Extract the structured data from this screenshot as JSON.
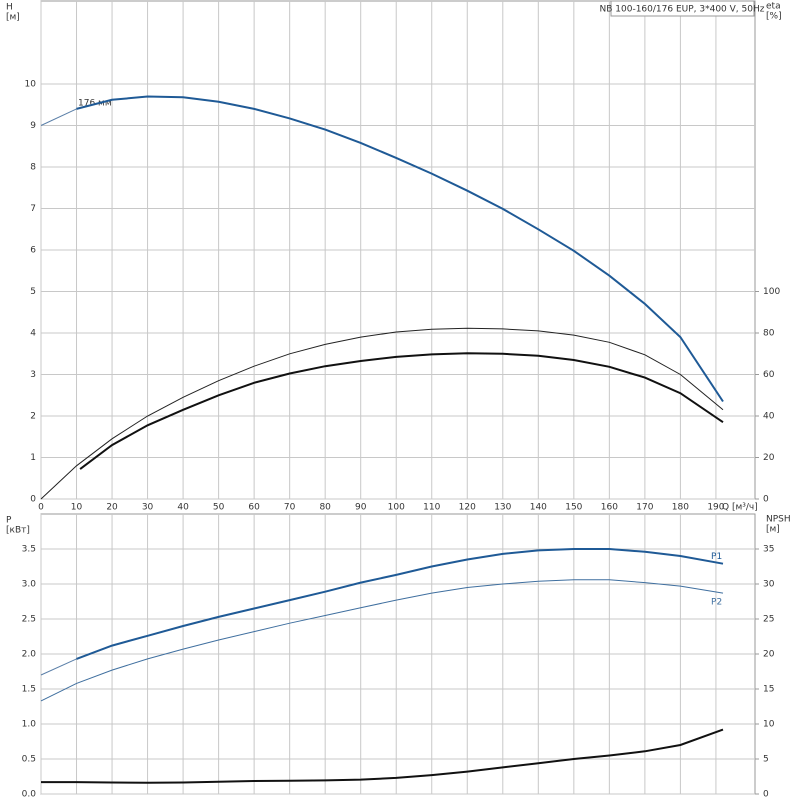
{
  "chart_data": [
    {
      "type": "line",
      "title": "NB 100-160/176 EUP, 3*400 V, 50Hz",
      "annotation": "176 мм",
      "x_label": "Q [м³/ч]",
      "y_label": "H",
      "y_unit": "[м]",
      "y2_label": "eta",
      "y2_unit": "[%]",
      "xlim": [
        0,
        201
      ],
      "xticks": [
        0,
        10,
        20,
        30,
        40,
        50,
        60,
        70,
        80,
        90,
        100,
        110,
        120,
        130,
        140,
        150,
        160,
        170,
        180,
        190
      ],
      "xtick_labels": true,
      "ylim": [
        0,
        12
      ],
      "yticks": [
        0,
        1,
        2,
        3,
        4,
        5,
        6,
        7,
        8,
        9,
        10
      ],
      "y2lim": [
        0,
        240
      ],
      "y2ticks": [
        0,
        20,
        40,
        60,
        80,
        100
      ],
      "grid": true,
      "series": [
        {
          "color": "#5a7fa8",
          "width": 1,
          "x": [
            0,
            10
          ],
          "values": [
            9.0,
            9.4
          ]
        },
        {
          "color": "#1f5a96",
          "width": 2,
          "x": [
            10,
            20,
            30,
            40,
            50,
            60,
            70,
            80,
            90,
            100,
            110,
            120,
            130,
            140,
            150,
            160,
            170,
            180,
            192
          ],
          "values": [
            9.4,
            9.62,
            9.7,
            9.68,
            9.57,
            9.4,
            9.17,
            8.9,
            8.58,
            8.22,
            7.84,
            7.43,
            6.99,
            6.5,
            5.98,
            5.38,
            4.7,
            3.9,
            2.35
          ]
        },
        {
          "color": "#222222",
          "width": 1,
          "axis": "y2",
          "x": [
            0,
            10,
            20,
            30,
            40,
            50,
            60,
            70,
            80,
            90,
            100,
            110,
            120,
            130,
            140,
            150,
            160,
            170,
            180,
            192
          ],
          "values": [
            0,
            16,
            29,
            40,
            49,
            57,
            64,
            70,
            74.5,
            78,
            80.5,
            81.8,
            82.3,
            82,
            81,
            79,
            75.5,
            69.5,
            60,
            43
          ]
        },
        {
          "color": "#111111",
          "width": 2,
          "axis": "y2",
          "x": [
            11,
            20,
            30,
            40,
            50,
            60,
            70,
            80,
            90,
            100,
            110,
            120,
            130,
            140,
            150,
            160,
            170,
            180,
            192
          ],
          "values": [
            14.4,
            26,
            35.5,
            43,
            50,
            56,
            60.5,
            64,
            66.5,
            68.5,
            69.7,
            70.2,
            70,
            69,
            67,
            63.7,
            58.5,
            51,
            37
          ]
        }
      ]
    },
    {
      "type": "line",
      "y_label": "P",
      "y_unit": "[кВт]",
      "y2_label": "NPSH",
      "y2_unit": "[м]",
      "xlim": [
        0,
        201
      ],
      "xticks": [
        0,
        10,
        20,
        30,
        40,
        50,
        60,
        70,
        80,
        90,
        100,
        110,
        120,
        130,
        140,
        150,
        160,
        170,
        180,
        190
      ],
      "xtick_labels": false,
      "ylim": [
        0,
        4
      ],
      "yticks": [
        {
          "value": 0,
          "label": "0.0"
        },
        0.5,
        {
          "value": 1,
          "label": "1.0"
        },
        1.5,
        {
          "value": 2,
          "label": "2.0"
        },
        2.5,
        {
          "value": 3,
          "label": "3.0"
        },
        3.5
      ],
      "y2lim": [
        0,
        40
      ],
      "y2ticks": [
        0,
        5,
        10,
        15,
        20,
        25,
        30,
        35
      ],
      "grid": true,
      "series": [
        {
          "color": "#5a7fa8",
          "width": 1,
          "x": [
            0,
            10
          ],
          "values": [
            1.7,
            1.93
          ]
        },
        {
          "name": "P1",
          "color": "#1f5a96",
          "width": 2,
          "x": [
            10,
            20,
            30,
            40,
            50,
            60,
            70,
            80,
            90,
            100,
            110,
            120,
            130,
            140,
            150,
            160,
            170,
            180,
            192
          ],
          "values": [
            1.93,
            2.12,
            2.26,
            2.4,
            2.53,
            2.65,
            2.77,
            2.89,
            3.02,
            3.13,
            3.25,
            3.35,
            3.43,
            3.48,
            3.5,
            3.5,
            3.46,
            3.4,
            3.29
          ]
        },
        {
          "name": "P2",
          "color": "#3f6f9f",
          "width": 1,
          "x": [
            0,
            10,
            20,
            30,
            40,
            50,
            60,
            70,
            80,
            90,
            100,
            110,
            120,
            130,
            140,
            150,
            160,
            170,
            180,
            192
          ],
          "values": [
            1.33,
            1.58,
            1.77,
            1.93,
            2.07,
            2.2,
            2.32,
            2.44,
            2.55,
            2.66,
            2.77,
            2.87,
            2.95,
            3.0,
            3.04,
            3.06,
            3.06,
            3.02,
            2.97,
            2.87
          ]
        },
        {
          "color": "#111111",
          "width": 2,
          "axis": "y2",
          "x": [
            0,
            10,
            20,
            30,
            40,
            50,
            60,
            70,
            80,
            90,
            100,
            110,
            120,
            130,
            140,
            150,
            160,
            170,
            180,
            192
          ],
          "values": [
            1.7,
            1.7,
            1.65,
            1.6,
            1.65,
            1.75,
            1.85,
            1.9,
            1.95,
            2.05,
            2.3,
            2.7,
            3.2,
            3.8,
            4.4,
            5.0,
            5.5,
            6.1,
            7.0,
            9.2
          ]
        }
      ]
    }
  ]
}
